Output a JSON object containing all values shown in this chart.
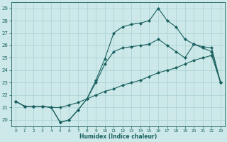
{
  "xlabel": "Humidex (Indice chaleur)",
  "xlim": [
    -0.5,
    23.5
  ],
  "ylim": [
    19.5,
    29.5
  ],
  "yticks": [
    20,
    21,
    22,
    23,
    24,
    25,
    26,
    27,
    28,
    29
  ],
  "xticks": [
    0,
    1,
    2,
    3,
    4,
    5,
    6,
    7,
    8,
    9,
    10,
    11,
    12,
    13,
    14,
    15,
    16,
    17,
    18,
    19,
    20,
    21,
    22,
    23
  ],
  "background_color": "#cce8e8",
  "grid_color": "#aad0d0",
  "line_color": "#1a6060",
  "upper_x": [
    0,
    1,
    2,
    3,
    4,
    5,
    6,
    7,
    8,
    9,
    10,
    11,
    12,
    13,
    14,
    15,
    16,
    17,
    18,
    19,
    20,
    21,
    22,
    23
  ],
  "upper_y": [
    21.5,
    21.1,
    21.1,
    21.1,
    21.0,
    19.8,
    20.0,
    20.8,
    21.7,
    23.2,
    24.9,
    27.0,
    27.5,
    27.7,
    27.8,
    28.0,
    29.0,
    28.0,
    27.5,
    26.5,
    26.1,
    25.9,
    25.8,
    23.0
  ],
  "mid_x": [
    0,
    1,
    2,
    3,
    4,
    5,
    6,
    7,
    8,
    9,
    10,
    11,
    12,
    13,
    14,
    15,
    16,
    17,
    18,
    19,
    20,
    21,
    22,
    23
  ],
  "mid_y": [
    21.5,
    21.1,
    21.1,
    21.1,
    21.0,
    19.8,
    20.0,
    20.8,
    21.7,
    23.0,
    24.5,
    25.5,
    25.8,
    25.9,
    26.0,
    26.1,
    26.5,
    26.0,
    25.5,
    25.0,
    26.1,
    25.8,
    25.5,
    23.0
  ],
  "low_x": [
    0,
    1,
    2,
    3,
    4,
    5,
    6,
    7,
    8,
    9,
    10,
    11,
    12,
    13,
    14,
    15,
    16,
    17,
    18,
    19,
    20,
    21,
    22,
    23
  ],
  "low_y": [
    21.5,
    21.1,
    21.1,
    21.1,
    21.0,
    21.0,
    21.2,
    21.4,
    21.7,
    22.0,
    22.3,
    22.5,
    22.8,
    23.0,
    23.2,
    23.5,
    23.8,
    24.0,
    24.2,
    24.5,
    24.8,
    25.0,
    25.2,
    23.0
  ]
}
